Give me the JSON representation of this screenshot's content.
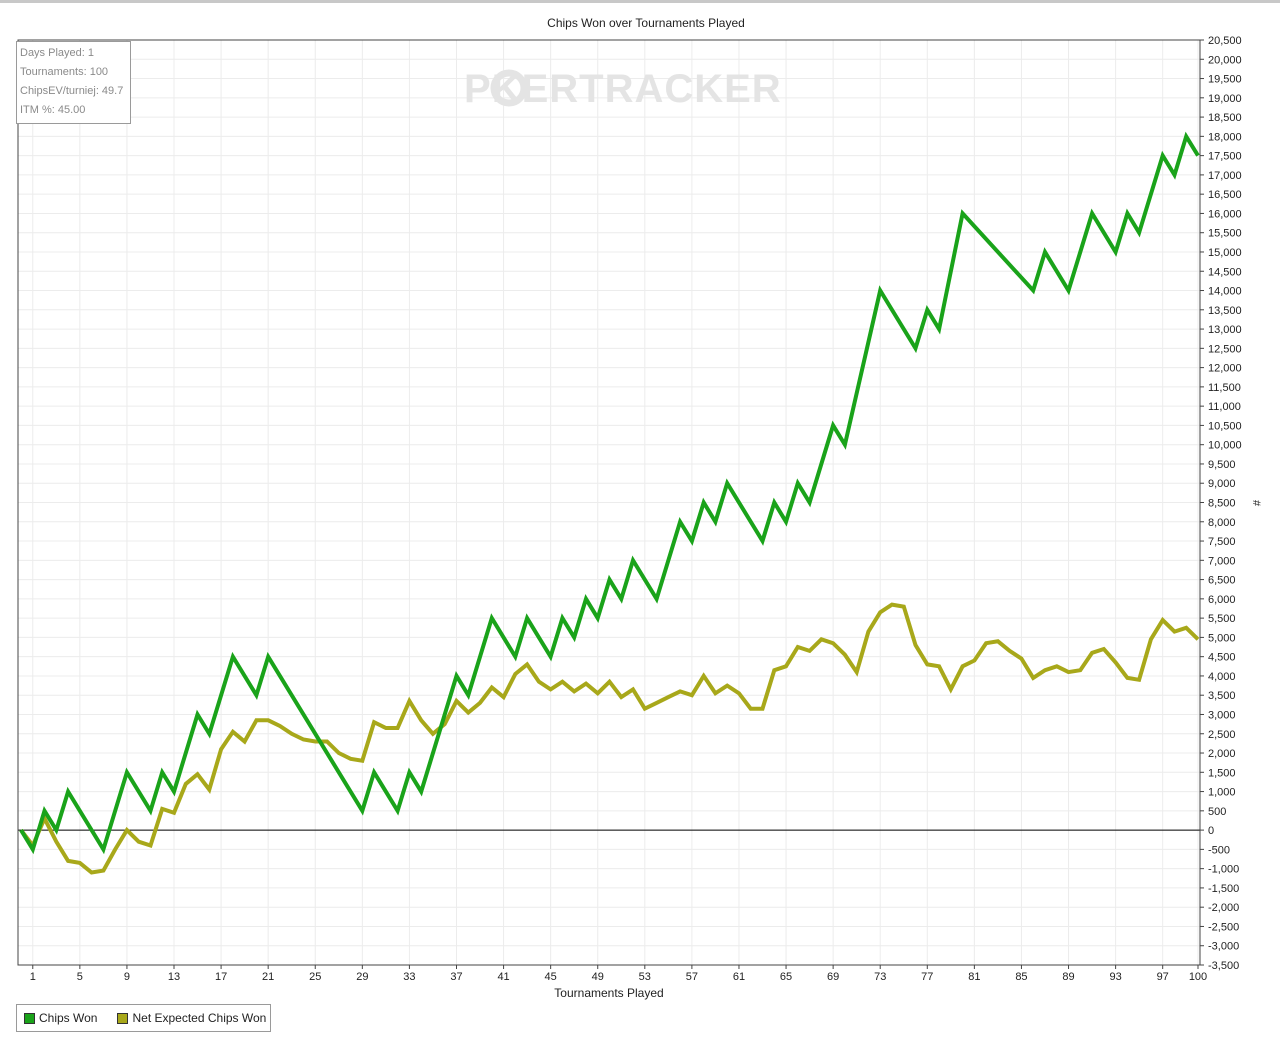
{
  "stats": {
    "days_played": "Days Played: 1",
    "tournaments": "Tournaments: 100",
    "chips_ev": "ChipsEV/turniej: 49.7",
    "itm": "ITM %: 45.00"
  },
  "watermark": {
    "left": "P",
    "mid": "KER",
    "right": "TRACKER"
  },
  "colors": {
    "chips_won": "#1aa31a",
    "net_expected": "#a8a81a",
    "grid": "#ececec",
    "zero_line": "#000000"
  },
  "chart_data": {
    "type": "line",
    "title": "Chips Won over Tournaments Played",
    "xlabel": "Tournaments Played",
    "ylabel": "",
    "y_unit_label": "#",
    "xlim": [
      0,
      100
    ],
    "ylim": [
      -3500,
      20500
    ],
    "x_ticks": [
      1,
      5,
      9,
      13,
      17,
      21,
      25,
      29,
      33,
      37,
      41,
      45,
      49,
      53,
      57,
      61,
      65,
      69,
      73,
      77,
      81,
      85,
      89,
      93,
      97,
      100
    ],
    "y_ticks": [
      20500,
      20000,
      19500,
      19000,
      18500,
      18000,
      17500,
      17000,
      16500,
      16000,
      15500,
      15000,
      14500,
      14000,
      13500,
      13000,
      12500,
      12000,
      11500,
      11000,
      10500,
      10000,
      9500,
      9000,
      8500,
      8000,
      7500,
      7000,
      6500,
      6000,
      5500,
      5000,
      4500,
      4000,
      3500,
      3000,
      2500,
      2000,
      1500,
      1000,
      500,
      0,
      -500,
      -1000,
      -1500,
      -2000,
      -2500,
      -3000,
      -3500
    ],
    "y_tick_labels": [
      "20,500",
      "20,000",
      "19,500",
      "19,000",
      "18,500",
      "18,000",
      "17,500",
      "17,000",
      "16,500",
      "16,000",
      "15,500",
      "15,000",
      "14,500",
      "14,000",
      "13,500",
      "13,000",
      "12,500",
      "12,000",
      "11,500",
      "11,000",
      "10,500",
      "10,000",
      "9,500",
      "9,000",
      "8,500",
      "8,000",
      "7,500",
      "7,000",
      "6,500",
      "6,000",
      "5,500",
      "5,000",
      "4,500",
      "4,000",
      "3,500",
      "3,000",
      "2,500",
      "2,000",
      "1,500",
      "1,000",
      "500",
      "0",
      "-500",
      "-1,000",
      "-1,500",
      "-2,000",
      "-2,500",
      "-3,000",
      "-3,500"
    ],
    "grid": true,
    "legend_position": "bottom-left",
    "series": [
      {
        "name": "Chips Won",
        "x": [
          0,
          1,
          2,
          3,
          4,
          7,
          9,
          11,
          12,
          13,
          15,
          16,
          18,
          20,
          21,
          29,
          30,
          32,
          33,
          34,
          37,
          38,
          40,
          42,
          43,
          45,
          46,
          47,
          48,
          49,
          50,
          51,
          52,
          54,
          56,
          57,
          58,
          59,
          60,
          63,
          64,
          65,
          66,
          67,
          69,
          70,
          73,
          76,
          77,
          78,
          80,
          86,
          87,
          89,
          91,
          93,
          94,
          95,
          97,
          98,
          99,
          100
        ],
        "y": [
          0,
          -500,
          500,
          0,
          1000,
          -500,
          1500,
          500,
          1500,
          1000,
          3000,
          2500,
          4500,
          3500,
          4500,
          500,
          1500,
          500,
          1500,
          1000,
          4000,
          3500,
          5500,
          4500,
          5500,
          4500,
          5500,
          5000,
          6000,
          5500,
          6500,
          6000,
          7000,
          6000,
          8000,
          7500,
          8500,
          8000,
          9000,
          7500,
          8500,
          8000,
          9000,
          8500,
          10500,
          10000,
          14000,
          12500,
          13500,
          13000,
          16000,
          14000,
          15000,
          14000,
          16000,
          15000,
          16000,
          15500,
          17500,
          17000,
          18000,
          17500
        ]
      },
      {
        "name": "Net Expected Chips Won",
        "x": [
          0,
          1,
          2,
          3,
          4,
          5,
          6,
          7,
          8,
          9,
          10,
          11,
          12,
          13,
          14,
          15,
          16,
          17,
          18,
          19,
          20,
          21,
          22,
          23,
          24,
          25,
          26,
          27,
          28,
          29,
          30,
          31,
          32,
          33,
          34,
          35,
          36,
          37,
          38,
          39,
          40,
          41,
          42,
          43,
          44,
          45,
          46,
          47,
          48,
          49,
          50,
          51,
          52,
          53,
          54,
          55,
          56,
          57,
          58,
          59,
          60,
          61,
          62,
          63,
          64,
          65,
          66,
          67,
          68,
          69,
          70,
          71,
          72,
          73,
          74,
          75,
          76,
          77,
          78,
          79,
          80,
          81,
          82,
          83,
          84,
          85,
          86,
          87,
          88,
          89,
          90,
          91,
          92,
          93,
          94,
          95,
          96,
          97,
          98,
          99,
          100
        ],
        "y": [
          0,
          -400,
          300,
          -300,
          -800,
          -850,
          -1100,
          -1050,
          -500,
          0,
          -300,
          -400,
          550,
          450,
          1200,
          1450,
          1050,
          2100,
          2550,
          2300,
          2850,
          2850,
          2700,
          2500,
          2350,
          2300,
          2300,
          2000,
          1850,
          1800,
          2800,
          2650,
          2650,
          3350,
          2850,
          2500,
          2750,
          3350,
          3050,
          3300,
          3700,
          3450,
          4050,
          4300,
          3850,
          3650,
          3850,
          3600,
          3800,
          3550,
          3850,
          3450,
          3650,
          3150,
          3300,
          3450,
          3600,
          3500,
          4000,
          3550,
          3750,
          3550,
          3150,
          3150,
          4150,
          4250,
          4750,
          4650,
          4950,
          4850,
          4550,
          4100,
          5150,
          5650,
          5850,
          5800,
          4800,
          4300,
          4250,
          3650,
          4250,
          4400,
          4850,
          4900,
          4650,
          4450,
          3950,
          4150,
          4250,
          4100,
          4150,
          4600,
          4700,
          4350,
          3950,
          3900,
          4950,
          5450,
          5150,
          5250,
          4950
        ]
      }
    ]
  }
}
